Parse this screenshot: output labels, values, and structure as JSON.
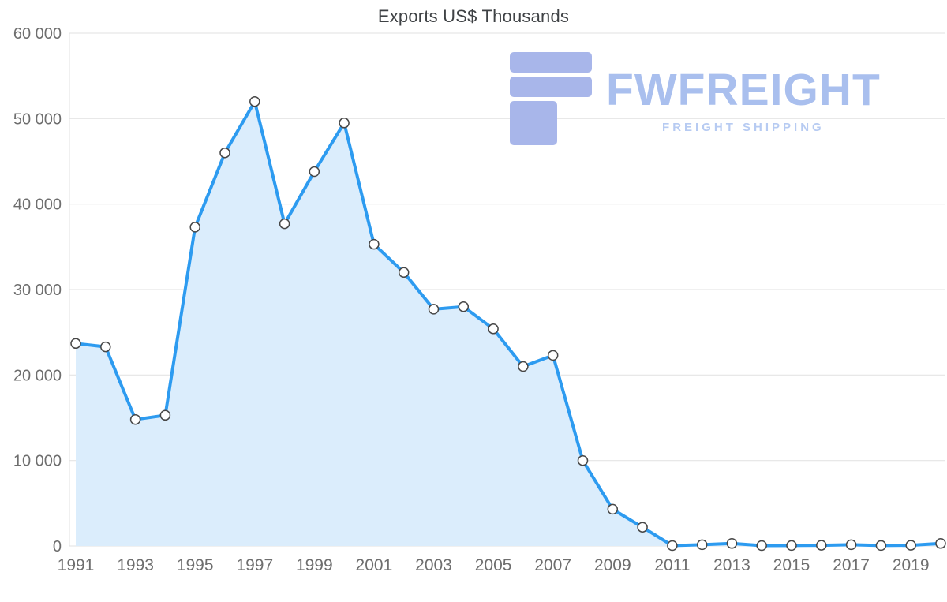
{
  "chart_data": {
    "type": "area",
    "title": "Exports US$ Thousands",
    "x": [
      1991,
      1992,
      1993,
      1994,
      1995,
      1996,
      1997,
      1998,
      1999,
      2000,
      2001,
      2002,
      2003,
      2004,
      2005,
      2006,
      2007,
      2008,
      2009,
      2010,
      2011,
      2012,
      2013,
      2014,
      2015,
      2016,
      2017,
      2018,
      2019,
      2020
    ],
    "values": [
      23700,
      23300,
      14800,
      15300,
      37300,
      46000,
      52000,
      37700,
      43800,
      49500,
      35300,
      32000,
      27700,
      28000,
      25400,
      21000,
      22300,
      10000,
      4300,
      2200,
      50,
      150,
      300,
      50,
      60,
      80,
      150,
      60,
      80,
      300
    ],
    "ylim": [
      0,
      60000
    ],
    "ytick_step": 10000,
    "xticks": [
      1991,
      1993,
      1995,
      1997,
      1999,
      2001,
      2003,
      2005,
      2007,
      2009,
      2011,
      2013,
      2015,
      2017,
      2019
    ],
    "xlabel": "",
    "ylabel": "",
    "grid": true,
    "legend_position": "none"
  },
  "watermark": {
    "brand": "FWFREIGHT",
    "tagline": "FREIGHT SHIPPING"
  },
  "colors": {
    "line": "#2D9BF0",
    "fill": "#DBEDFC",
    "grid": "#E1E1E1",
    "axis_text": "#6E6E6E",
    "title": "#3F4245",
    "marker_fill": "#FFFFFF",
    "marker_stroke": "#474747",
    "watermark_icon": "#A8B6EA",
    "watermark_brand": "#A9BFEE",
    "watermark_tagline": "#B7CBF2"
  }
}
